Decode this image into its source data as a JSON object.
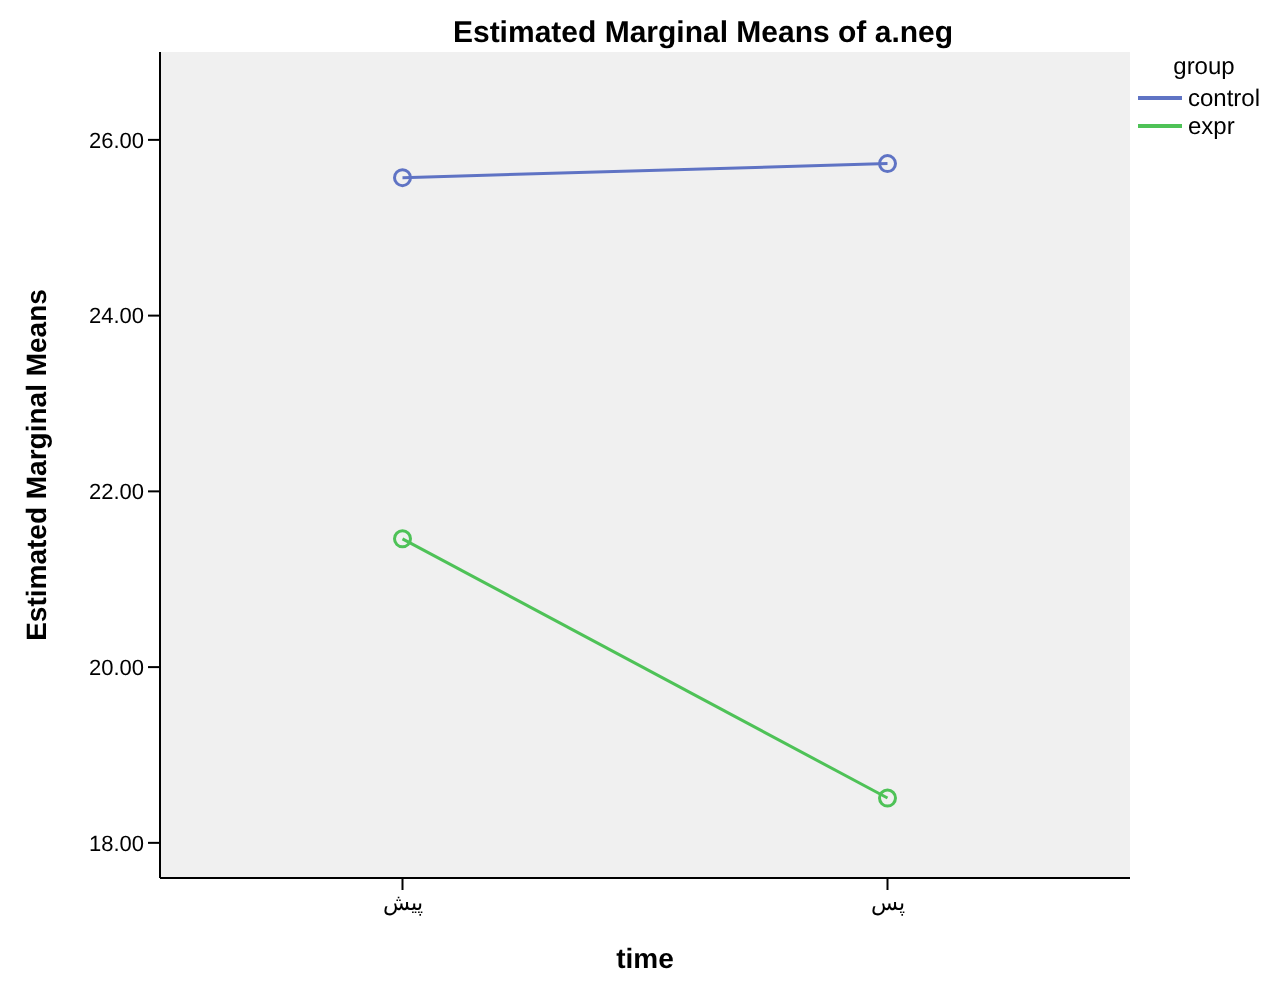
{
  "chart_data": {
    "type": "line",
    "title": "Estimated Marginal Means of a.neg",
    "xlabel": "time",
    "ylabel": "Estimated Marginal Means",
    "legend_title": "group",
    "categories": [
      "پیش",
      "پس"
    ],
    "series": [
      {
        "name": "control",
        "color": "#5f73c4",
        "values": [
          25.57,
          25.73
        ]
      },
      {
        "name": "expr",
        "color": "#4ec257",
        "values": [
          21.46,
          18.51
        ]
      }
    ],
    "ylim": [
      17.6,
      27.0
    ],
    "yticks": [
      {
        "value": 18,
        "label": "18.00"
      },
      {
        "value": 20,
        "label": "20.00"
      },
      {
        "value": 22,
        "label": "22.00"
      },
      {
        "value": 24,
        "label": "24.00"
      },
      {
        "value": 26,
        "label": "26.00"
      }
    ],
    "grid": false,
    "legend": "top right",
    "marker": "circle",
    "line_style": "solid"
  }
}
